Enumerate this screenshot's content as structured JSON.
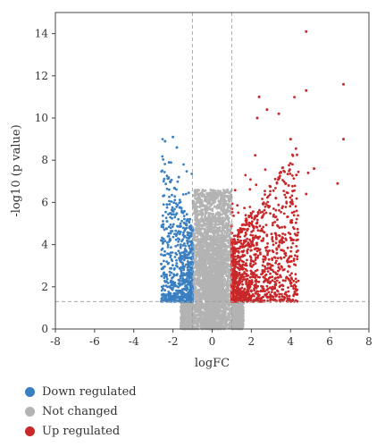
{
  "chart_data": {
    "type": "scatter",
    "title": "",
    "xlabel": "logFC",
    "ylabel": "-log10 (p value)",
    "xlim": [
      -8,
      8
    ],
    "ylim": [
      0,
      15
    ],
    "xticks": [
      "-8",
      "-6",
      "-4",
      "-2",
      "0",
      "2",
      "4",
      "6",
      "8"
    ],
    "yticks": [
      "0",
      "2",
      "4",
      "6",
      "8",
      "10",
      "12",
      "14"
    ],
    "grid": false,
    "thresholds": {
      "logFC": [
        -1,
        1
      ],
      "neg_log10_p": 1.3
    },
    "legend_position": "bottom-left",
    "series": [
      {
        "name": "Down regulated",
        "color": "#3a7fc1",
        "approx_count": 700,
        "x_range": [
          -2.6,
          -1.0
        ],
        "y_range": [
          1.3,
          9.1
        ],
        "highlighted_points": [
          {
            "x": -2.0,
            "y": 9.1
          },
          {
            "x": -2.4,
            "y": 8.9
          },
          {
            "x": -1.8,
            "y": 8.6
          },
          {
            "x": -2.2,
            "y": 7.9
          },
          {
            "x": -1.7,
            "y": 7.2
          },
          {
            "x": -2.5,
            "y": 6.3
          },
          {
            "x": -2.3,
            "y": 5.1
          },
          {
            "x": -2.6,
            "y": 4.2
          },
          {
            "x": -2.4,
            "y": 3.5
          }
        ]
      },
      {
        "name": "Not changed",
        "color": "#b3b3b3",
        "approx_count": 8000,
        "x_range": [
          -1.6,
          1.6
        ],
        "y_range": [
          0,
          6.6
        ]
      },
      {
        "name": "Up regulated",
        "color": "#c8282a",
        "approx_count": 1200,
        "x_range": [
          1.0,
          6.8
        ],
        "y_range": [
          1.3,
          14.1
        ],
        "highlighted_points": [
          {
            "x": 4.8,
            "y": 14.1
          },
          {
            "x": 6.7,
            "y": 11.6
          },
          {
            "x": 4.8,
            "y": 11.3
          },
          {
            "x": 2.4,
            "y": 11.0
          },
          {
            "x": 2.8,
            "y": 10.4
          },
          {
            "x": 3.4,
            "y": 10.2
          },
          {
            "x": 2.3,
            "y": 10.0
          },
          {
            "x": 6.7,
            "y": 9.0
          },
          {
            "x": 4.0,
            "y": 9.0
          },
          {
            "x": 5.2,
            "y": 7.6
          },
          {
            "x": 4.9,
            "y": 7.4
          },
          {
            "x": 4.3,
            "y": 7.3
          },
          {
            "x": 6.4,
            "y": 6.9
          },
          {
            "x": 3.9,
            "y": 6.8
          },
          {
            "x": 4.8,
            "y": 6.4
          }
        ]
      }
    ]
  }
}
